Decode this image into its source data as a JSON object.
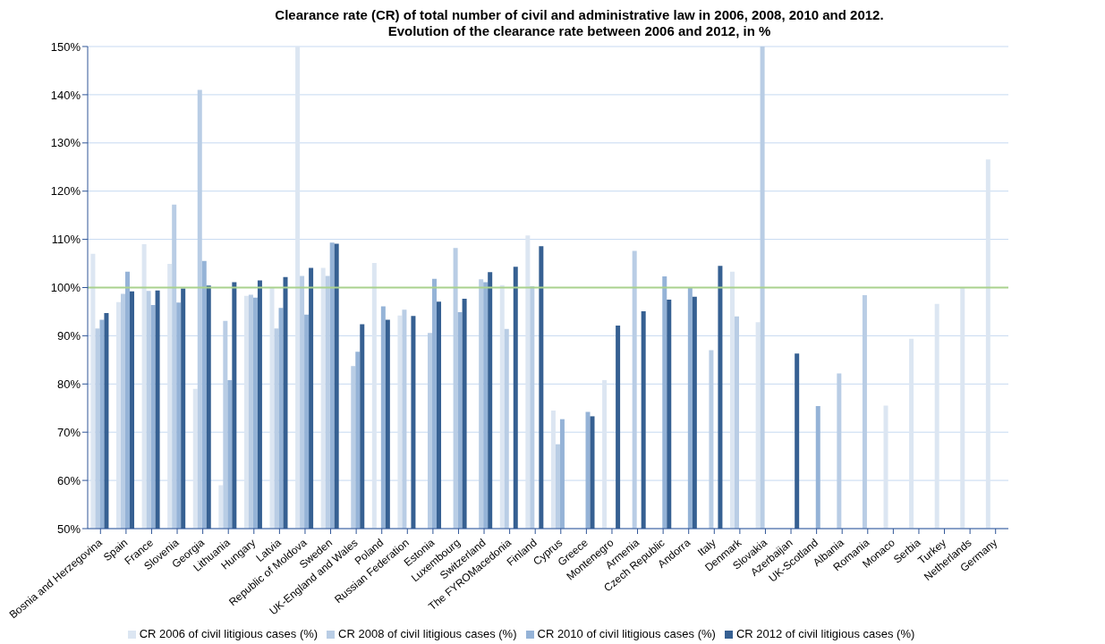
{
  "chart_data": {
    "type": "bar",
    "title": "Clearance rate (CR) of total number of civil and administrative law in 2006, 2008, 2010 and 2012.",
    "subtitle": "Evolution of the clearance rate between 2006 and 2012, in %",
    "categories": [
      "Bosnia and Herzegovina",
      "Spain",
      "France",
      "Slovenia",
      "Georgia",
      "Lithuania",
      "Hungary",
      "Latvia",
      "Republic of Moldova",
      "Sweden",
      "UK-England and Wales",
      "Poland",
      "Russian Federation",
      "Estonia",
      "Luxembourg",
      "Switzerland",
      "The FYROMacedonia",
      "Finland",
      "Cyprus",
      "Greece",
      "Montenegro",
      "Armenia",
      "Czech Republic",
      "Andorra",
      "Italy",
      "Denmark",
      "Slovakia",
      "Azerbaijan",
      "UK-Scotland",
      "Albania",
      "Romania",
      "Monaco",
      "Serbia",
      "Turkey",
      "Netherlands",
      "Germany"
    ],
    "series": [
      {
        "name": "CR 2006 of civil litigious cases (%)",
        "color": "#dce6f2",
        "values": [
          107,
          97,
          109,
          104.9,
          79,
          59,
          98.3,
          100,
          150,
          104.1,
          null,
          105.1,
          94.2,
          null,
          null,
          null,
          100.5,
          110.8,
          74.5,
          null,
          80.8,
          null,
          null,
          null,
          null,
          103.3,
          92.8,
          null,
          null,
          null,
          null,
          75.5,
          89.4,
          96.6,
          100,
          126.6
        ]
      },
      {
        "name": "CR 2008 of civil litigious cases (%)",
        "color": "#b9cde5",
        "values": [
          91.5,
          98.7,
          99.3,
          117.2,
          141,
          93.1,
          98.5,
          91.5,
          102.4,
          102.4,
          83.7,
          null,
          95.4,
          90.6,
          108.2,
          101.7,
          91.4,
          100.3,
          67.5,
          null,
          null,
          107.6,
          null,
          null,
          87,
          94,
          150,
          null,
          null,
          82.2,
          98.4,
          null,
          null,
          null,
          null,
          null
        ]
      },
      {
        "name": "CR 2010 of civil litigious cases (%)",
        "color": "#95b3d7",
        "values": [
          93.3,
          103.3,
          96.4,
          96.9,
          105.5,
          80.8,
          97.9,
          95.8,
          94.4,
          109.3,
          86.7,
          96.1,
          null,
          101.8,
          94.9,
          101.1,
          null,
          null,
          72.7,
          74.2,
          null,
          null,
          102.3,
          100,
          null,
          null,
          null,
          null,
          75.4,
          null,
          null,
          null,
          null,
          null,
          null,
          null
        ]
      },
      {
        "name": "CR 2012 of civil litigious cases (%)",
        "color": "#366092",
        "values": [
          94.7,
          99.2,
          99.4,
          99.8,
          100.4,
          101.1,
          101.5,
          102.2,
          104.1,
          109.1,
          92.4,
          93.3,
          94.1,
          97.1,
          97.7,
          103.2,
          104.3,
          108.6,
          null,
          73.3,
          92.1,
          95.1,
          97.5,
          98.1,
          104.5,
          null,
          null,
          86.3,
          null,
          null,
          null,
          null,
          null,
          null,
          null,
          null
        ]
      }
    ],
    "ylim": [
      50,
      150
    ],
    "yticks": [
      {
        "value": 50,
        "label": "50%"
      },
      {
        "value": 60,
        "label": "60%"
      },
      {
        "value": 70,
        "label": "70%"
      },
      {
        "value": 80,
        "label": "80%"
      },
      {
        "value": 90,
        "label": "90%"
      },
      {
        "value": 100,
        "label": "100%"
      },
      {
        "value": 110,
        "label": "110%"
      },
      {
        "value": 120,
        "label": "120%"
      },
      {
        "value": 130,
        "label": "130%"
      },
      {
        "value": 140,
        "label": "140%"
      },
      {
        "value": 150,
        "label": "150%"
      }
    ],
    "ref_lines": [
      {
        "axis": "y",
        "value": 100,
        "color": "#a9d18e"
      }
    ],
    "grid": "y",
    "legend": "bottom"
  }
}
